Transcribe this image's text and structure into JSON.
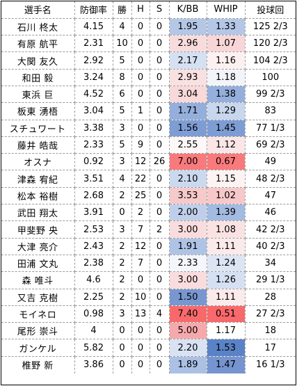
{
  "headers": [
    "選手名",
    "防御率",
    "勝",
    "H",
    "S",
    "K/BB",
    "WHIP",
    "投球回"
  ],
  "rows": [
    {
      "name": "石川 柊太",
      "era": "4.15",
      "w": "4",
      "h": "0",
      "s": "0",
      "kbb": "1.95",
      "kbb_bg": "#b4c7e7",
      "whip": "1.33",
      "whip_bg": "#b4c7e7",
      "ip": "125 2/3"
    },
    {
      "name": "有原 航平",
      "era": "2.31",
      "w": "10",
      "h": "0",
      "s": "0",
      "kbb": "2.96",
      "kbb_bg": "#f8dcdd",
      "whip": "1.07",
      "whip_bg": "#f8d6d7",
      "ip": "120 2/3"
    },
    {
      "name": "大関 友久",
      "era": "2.92",
      "w": "5",
      "h": "0",
      "s": "0",
      "kbb": "2.17",
      "kbb_bg": "#d5e0f2",
      "whip": "1.16",
      "whip_bg": "#fcf0f1",
      "ip": "104 2/3"
    },
    {
      "name": "和田 毅",
      "era": "3.24",
      "w": "8",
      "h": "0",
      "s": "0",
      "kbb": "2.93",
      "kbb_bg": "#f9e0e1",
      "whip": "1.18",
      "whip_bg": "#f2f4f9",
      "ip": "100"
    },
    {
      "name": "東浜 巨",
      "era": "4.52",
      "w": "6",
      "h": "0",
      "s": "0",
      "kbb": "3.04",
      "kbb_bg": "#f8d8d9",
      "whip": "1.38",
      "whip_bg": "#95afdc",
      "ip": "99 2/3"
    },
    {
      "name": "板東 湧梧",
      "era": "3.04",
      "w": "5",
      "h": "1",
      "s": "0",
      "kbb": "1.71",
      "kbb_bg": "#95afdc",
      "whip": "1.29",
      "whip_bg": "#c8d6ee",
      "ip": "83"
    },
    {
      "name": "スチュワート",
      "era": "3.38",
      "w": "3",
      "h": "0",
      "s": "0",
      "kbb": "1.56",
      "kbb_bg": "#7e9dd4",
      "whip": "1.45",
      "whip_bg": "#7e9dd4",
      "ip": "77 1/3"
    },
    {
      "name": "藤井 皓哉",
      "era": "2.33",
      "w": "5",
      "h": "9",
      "s": "0",
      "kbb": "2.55",
      "kbb_bg": "#fdf7f7",
      "whip": "1.12",
      "whip_bg": "#fbe6e7",
      "ip": "69 2/3"
    },
    {
      "name": "オスナ",
      "era": "0.92",
      "w": "3",
      "h": "12",
      "s": "26",
      "kbb": "7.00",
      "kbb_bg": "#f87a7c",
      "whip": "0.67",
      "whip_bg": "#f87a7c",
      "ip": "49"
    },
    {
      "name": "津森 宥紀",
      "era": "3.51",
      "w": "4",
      "h": "22",
      "s": "0",
      "kbb": "2.10",
      "kbb_bg": "#cbd9ef",
      "whip": "1.15",
      "whip_bg": "#fdf3f3",
      "ip": "48 2/3"
    },
    {
      "name": "松本 裕樹",
      "era": "2.68",
      "w": "2",
      "h": "25",
      "s": "0",
      "kbb": "3.53",
      "kbb_bg": "#f6c9ca",
      "whip": "1.02",
      "whip_bg": "#f7c8c9",
      "ip": "47"
    },
    {
      "name": "武田 翔太",
      "era": "3.91",
      "w": "0",
      "h": "2",
      "s": "0",
      "kbb": "2.00",
      "kbb_bg": "#bfcfeb",
      "whip": "1.39",
      "whip_bg": "#a3bae1",
      "ip": "46"
    },
    {
      "name": "甲斐野 央",
      "era": "2.53",
      "w": "3",
      "h": "7",
      "s": "2",
      "kbb": "3.00",
      "kbb_bg": "#f9dcdd",
      "whip": "1.08",
      "whip_bg": "#fae2e3",
      "ip": "42 2/3"
    },
    {
      "name": "大津 亮介",
      "era": "2.43",
      "w": "2",
      "h": "12",
      "s": "0",
      "kbb": "1.91",
      "kbb_bg": "#aec3e6",
      "whip": "1.11",
      "whip_bg": "#fbeaeb",
      "ip": "40 2/3"
    },
    {
      "name": "田浦 文丸",
      "era": "2.38",
      "w": "2",
      "h": "7",
      "s": "0",
      "kbb": "2.33",
      "kbb_bg": "#f3f6fb",
      "whip": "1.24",
      "whip_bg": "#dce5f4",
      "ip": "34"
    },
    {
      "name": "森 唯斗",
      "era": "4.6",
      "w": "2",
      "h": "0",
      "s": "0",
      "kbb": "3.00",
      "kbb_bg": "#f9dcdd",
      "whip": "1.26",
      "whip_bg": "#d5e0f2",
      "ip": "29 1/3"
    },
    {
      "name": "又吉 克樹",
      "era": "2.25",
      "w": "2",
      "h": "10",
      "s": "0",
      "kbb": "1.50",
      "kbb_bg": "#7897d1",
      "whip": "1.11",
      "whip_bg": "#fbeaeb",
      "ip": "28"
    },
    {
      "name": "モイネロ",
      "era": "0.98",
      "w": "3",
      "h": "13",
      "s": "4",
      "kbb": "7.40",
      "kbb_bg": "#f8696b",
      "whip": "0.51",
      "whip_bg": "#f8696b",
      "ip": "27 2/3"
    },
    {
      "name": "尾形 崇斗",
      "era": "4",
      "w": "0",
      "h": "0",
      "s": "0",
      "kbb": "5.00",
      "kbb_bg": "#f6a9ab",
      "whip": "1.17",
      "whip_bg": "#ffffff",
      "ip": "18"
    },
    {
      "name": "ガンケル",
      "era": "5.82",
      "w": "0",
      "h": "0",
      "s": "0",
      "kbb": "2.20",
      "kbb_bg": "#d8e2f3",
      "whip": "1.53",
      "whip_bg": "#5a82c6",
      "ip": "17"
    },
    {
      "name": "椎野 新",
      "era": "3.86",
      "w": "0",
      "h": "0",
      "s": "0",
      "kbb": "1.89",
      "kbb_bg": "#aac0e5",
      "whip": "1.47",
      "whip_bg": "#7594d0",
      "ip": "16 1/3"
    }
  ]
}
